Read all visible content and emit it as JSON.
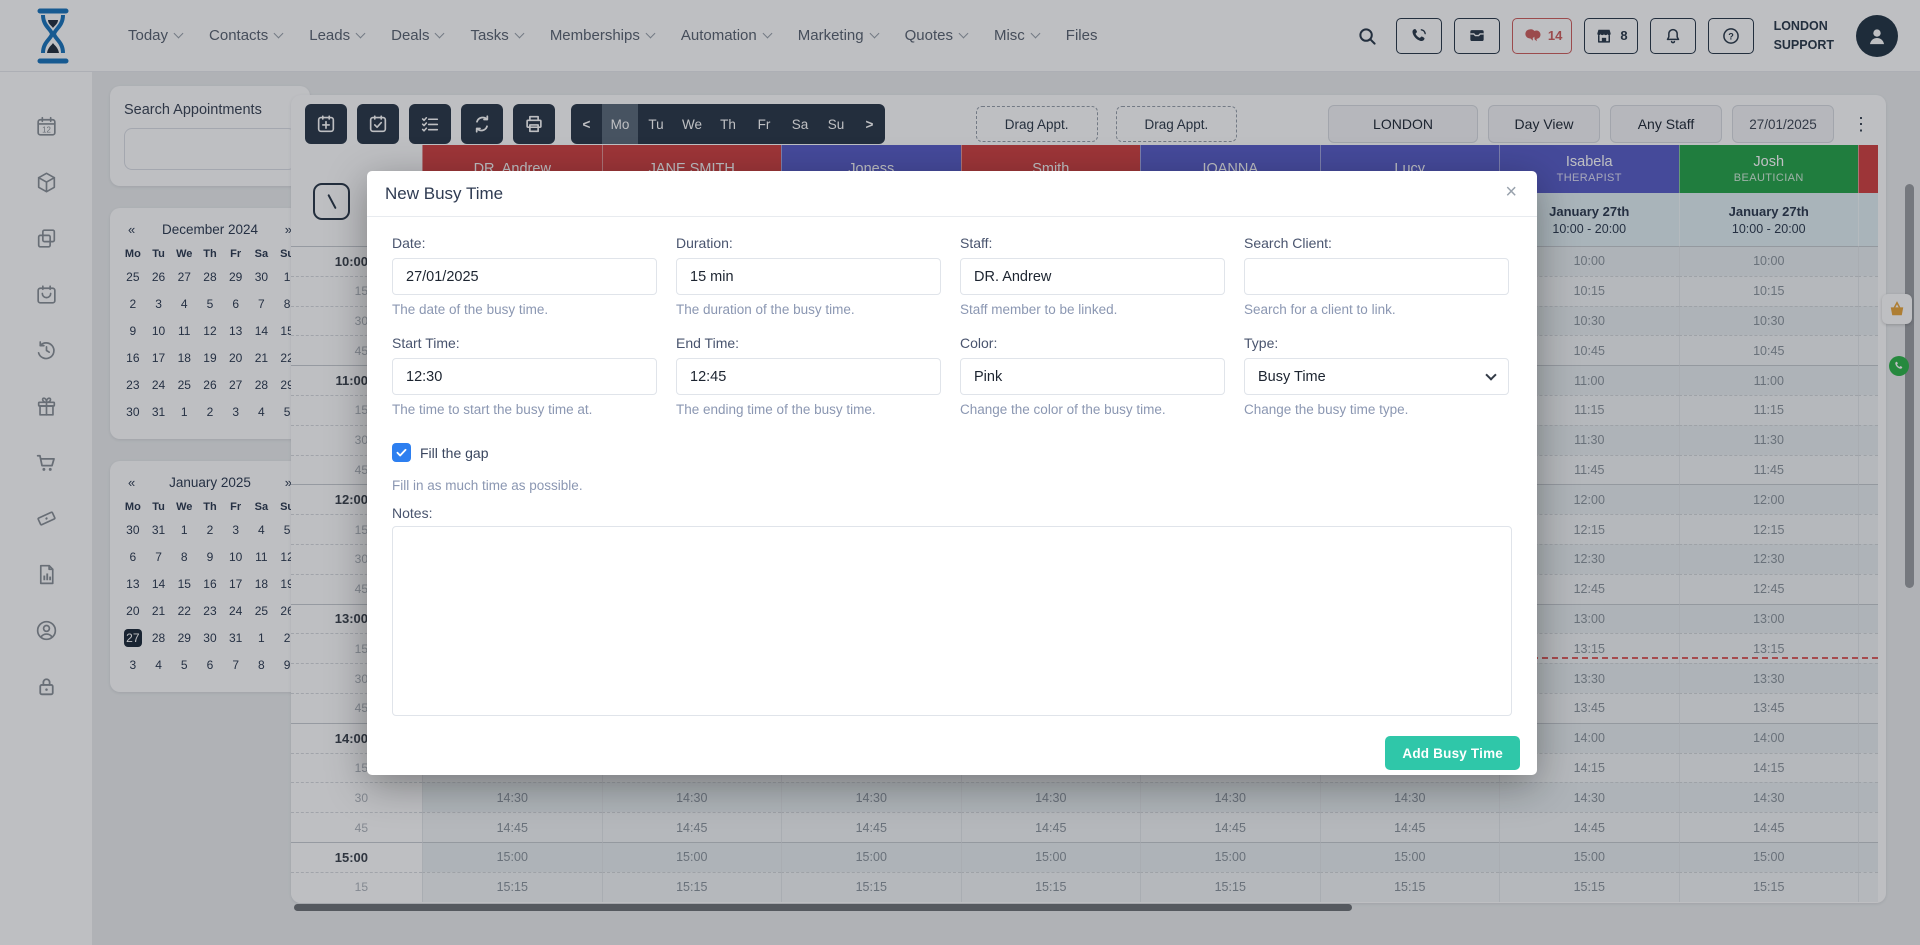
{
  "topnav": {
    "menu": [
      {
        "label": "Today",
        "dropdown": true
      },
      {
        "label": "Contacts",
        "dropdown": true
      },
      {
        "label": "Leads",
        "dropdown": true
      },
      {
        "label": "Deals",
        "dropdown": true
      },
      {
        "label": "Tasks",
        "dropdown": true
      },
      {
        "label": "Memberships",
        "dropdown": true
      },
      {
        "label": "Automation",
        "dropdown": true
      },
      {
        "label": "Marketing",
        "dropdown": true
      },
      {
        "label": "Quotes",
        "dropdown": true
      },
      {
        "label": "Misc",
        "dropdown": true
      },
      {
        "label": "Files",
        "dropdown": false
      }
    ],
    "actions": [
      {
        "icon": "phone",
        "name": "calls"
      },
      {
        "icon": "inbox",
        "name": "inbox"
      },
      {
        "icon": "chat",
        "name": "messages",
        "count": "14",
        "accent": true
      },
      {
        "icon": "store",
        "name": "shop",
        "count": "8"
      },
      {
        "icon": "bell",
        "name": "notifications"
      },
      {
        "icon": "help",
        "name": "help"
      }
    ],
    "account": {
      "line1": "LONDON",
      "line2": "SUPPORT"
    }
  },
  "sidebar": {
    "items": [
      "calendar-date",
      "cube",
      "copy",
      "appointments",
      "history",
      "gift",
      "cart",
      "voucher",
      "reports",
      "account",
      "lock"
    ]
  },
  "left_panel": {
    "search": {
      "title": "Search Appointments",
      "value": ""
    },
    "calendars": [
      {
        "title": "December 2024",
        "prev": "«",
        "next": "»",
        "day_names": [
          "Mo",
          "Tu",
          "We",
          "Th",
          "Fr",
          "Sa",
          "Su"
        ],
        "weeks": [
          [
            "25",
            "26",
            "27",
            "28",
            "29",
            "30",
            "1"
          ],
          [
            "2",
            "3",
            "4",
            "5",
            "6",
            "7",
            "8"
          ],
          [
            "9",
            "10",
            "11",
            "12",
            "13",
            "14",
            "15"
          ],
          [
            "16",
            "17",
            "18",
            "19",
            "20",
            "21",
            "22"
          ],
          [
            "23",
            "24",
            "25",
            "26",
            "27",
            "28",
            "29"
          ],
          [
            "30",
            "31",
            "1",
            "2",
            "3",
            "4",
            "5"
          ]
        ]
      },
      {
        "title": "January 2025",
        "prev": "«",
        "next": "»",
        "day_names": [
          "Mo",
          "Tu",
          "We",
          "Th",
          "Fr",
          "Sa",
          "Su"
        ],
        "weeks": [
          [
            "30",
            "31",
            "1",
            "2",
            "3",
            "4",
            "5"
          ],
          [
            "6",
            "7",
            "8",
            "9",
            "10",
            "11",
            "12"
          ],
          [
            "13",
            "14",
            "15",
            "16",
            "17",
            "18",
            "19"
          ],
          [
            "20",
            "21",
            "22",
            "23",
            "24",
            "25",
            "26"
          ],
          [
            "27",
            "28",
            "29",
            "30",
            "31",
            "1",
            "2"
          ],
          [
            "3",
            "4",
            "5",
            "6",
            "7",
            "8",
            "9"
          ]
        ],
        "selected": {
          "week": 4,
          "day": 0,
          "value": "27"
        }
      }
    ]
  },
  "toolbar": {
    "buttons": [
      {
        "icon": "cal-add",
        "name": "new-appointment"
      },
      {
        "icon": "cal-check",
        "name": "confirm-appointments"
      },
      {
        "icon": "checklist",
        "name": "waiting-list"
      },
      {
        "icon": "sync",
        "name": "refresh"
      },
      {
        "icon": "print",
        "name": "print"
      }
    ],
    "day_nav": {
      "prev": "<",
      "next": ">",
      "days": [
        "Mo",
        "Tu",
        "We",
        "Th",
        "Fr",
        "Sa",
        "Su"
      ],
      "active": "Mo"
    },
    "drag_labels": [
      "Drag Appt.",
      "Drag Appt."
    ],
    "filters": [
      {
        "label": "LONDON",
        "name": "location"
      },
      {
        "label": "Day View",
        "name": "view"
      },
      {
        "label": "Any Staff",
        "name": "staff"
      }
    ],
    "date_value": "27/01/2025",
    "kebab": "⋮"
  },
  "schedule": {
    "staff": [
      {
        "name": "DR. Andrew",
        "color": "#d24343"
      },
      {
        "name": "JANE SMITH",
        "color": "#d24343"
      },
      {
        "name": "Joness",
        "color": "#5a5fc9"
      },
      {
        "name": "Smith",
        "color": "#d24343"
      },
      {
        "name": "IOANNA",
        "color": "#5a5fc9"
      },
      {
        "name": "Lucy",
        "color": "#5a5fc9"
      },
      {
        "name": "Isabela",
        "role": "THERAPIST",
        "color": "#5a5fc9"
      },
      {
        "name": "Josh",
        "role": "BEAUTICIAN",
        "color": "#27a54b"
      }
    ],
    "extra_column_color": "#d24343",
    "day_header": {
      "date": "January 27th",
      "hours": "10:00 - 20:00"
    },
    "times": [
      "10:00",
      "10:15",
      "10:30",
      "10:45",
      "11:00",
      "11:15",
      "11:30",
      "11:45",
      "12:00",
      "12:15",
      "12:30",
      "12:45",
      "13:00",
      "13:15",
      "13:30",
      "13:45",
      "14:00",
      "14:15",
      "14:30",
      "14:45",
      "15:00",
      "15:15"
    ]
  },
  "modal": {
    "title": "New Busy Time",
    "close": "×",
    "fields": [
      {
        "name": "date",
        "label": "Date:",
        "value": "27/01/2025",
        "help": "The date of the busy time.",
        "control": "input"
      },
      {
        "name": "duration",
        "label": "Duration:",
        "value": "15 min",
        "help": "The duration of the busy time.",
        "control": "input"
      },
      {
        "name": "staff",
        "label": "Staff:",
        "value": "DR. Andrew",
        "help": "Staff member to be linked.",
        "control": "input"
      },
      {
        "name": "search-client",
        "label": "Search Client:",
        "value": "",
        "help": "Search for a client to link.",
        "control": "input"
      },
      {
        "name": "start-time",
        "label": "Start Time:",
        "value": "12:30",
        "help": "The time to start the busy time at.",
        "control": "input"
      },
      {
        "name": "end-time",
        "label": "End Time:",
        "value": "12:45",
        "help": "The ending time of the busy time.",
        "control": "input"
      },
      {
        "name": "color",
        "label": "Color:",
        "value": "Pink",
        "help": "Change the color of the busy time.",
        "control": "input"
      },
      {
        "name": "type",
        "label": "Type:",
        "value": "Busy Time",
        "help": "Change the busy time type.",
        "control": "select"
      }
    ],
    "fill_gap": {
      "label": "Fill the gap",
      "checked": true,
      "help": "Fill in as much time as possible."
    },
    "notes_label": "Notes:",
    "notes_value": "",
    "submit_label": "Add Busy Time"
  },
  "colors": {
    "staff_red": "#d24343",
    "staff_blue": "#5a5fc9",
    "staff_green": "#27a54b",
    "submit_teal": "#2fc7a9",
    "checkbox_blue": "#2d7ff0",
    "chat_accent": "#d0605f",
    "subheader_bg": "#e3f0f4",
    "toolbar_dark": "#2b3949"
  }
}
